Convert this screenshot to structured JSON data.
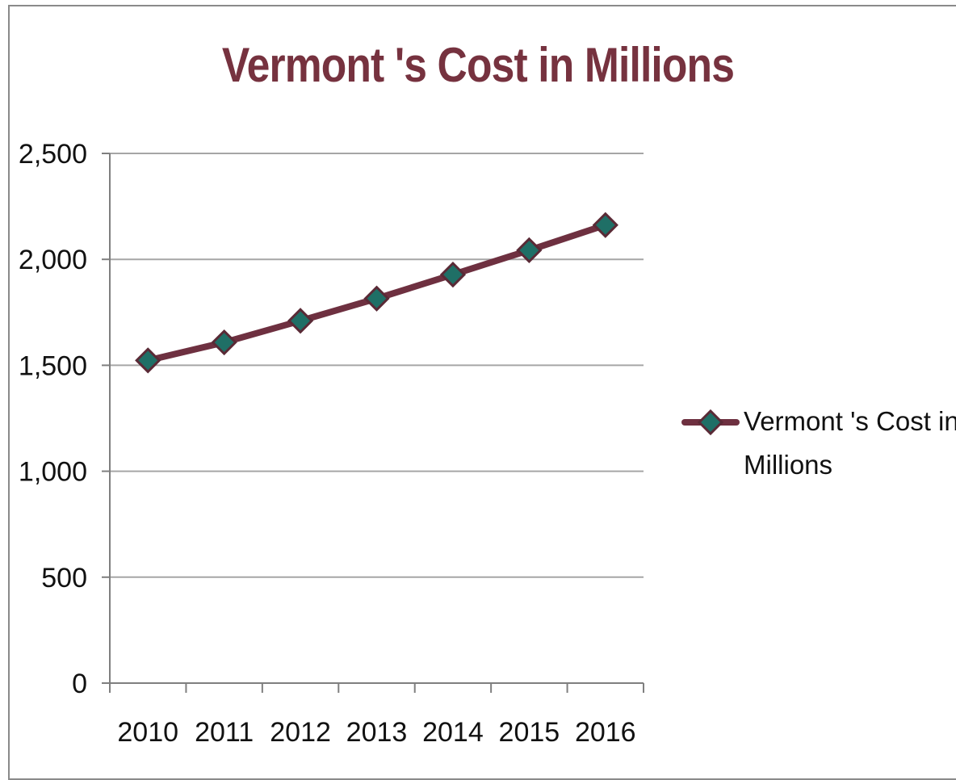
{
  "colors": {
    "title": "#76323f",
    "line": "#6e3040",
    "marker_fill": "#1f6f66",
    "marker_stroke": "#5a2a36",
    "grid": "#a6a6a6",
    "axis": "#7f7f7f"
  },
  "chart_data": {
    "type": "line",
    "title": "Vermont 's Cost in Millions",
    "xlabel": "",
    "ylabel": "",
    "categories": [
      "2010",
      "2011",
      "2012",
      "2013",
      "2014",
      "2015",
      "2016"
    ],
    "series": [
      {
        "name": "Vermont 's Cost in Millions",
        "values": [
          1523,
          1608,
          1710,
          1815,
          1928,
          2043,
          2162
        ],
        "marker": "diamond"
      }
    ],
    "ylim": [
      0,
      2500
    ],
    "yticks": [
      0,
      500,
      1000,
      1500,
      2000,
      2500
    ],
    "ytick_labels": [
      "0",
      "500",
      "1,000",
      "1,500",
      "2,000",
      "2,500"
    ],
    "grid": true,
    "legend_position": "right",
    "legend_lines": [
      "Vermont 's Cost in",
      "Millions"
    ]
  }
}
